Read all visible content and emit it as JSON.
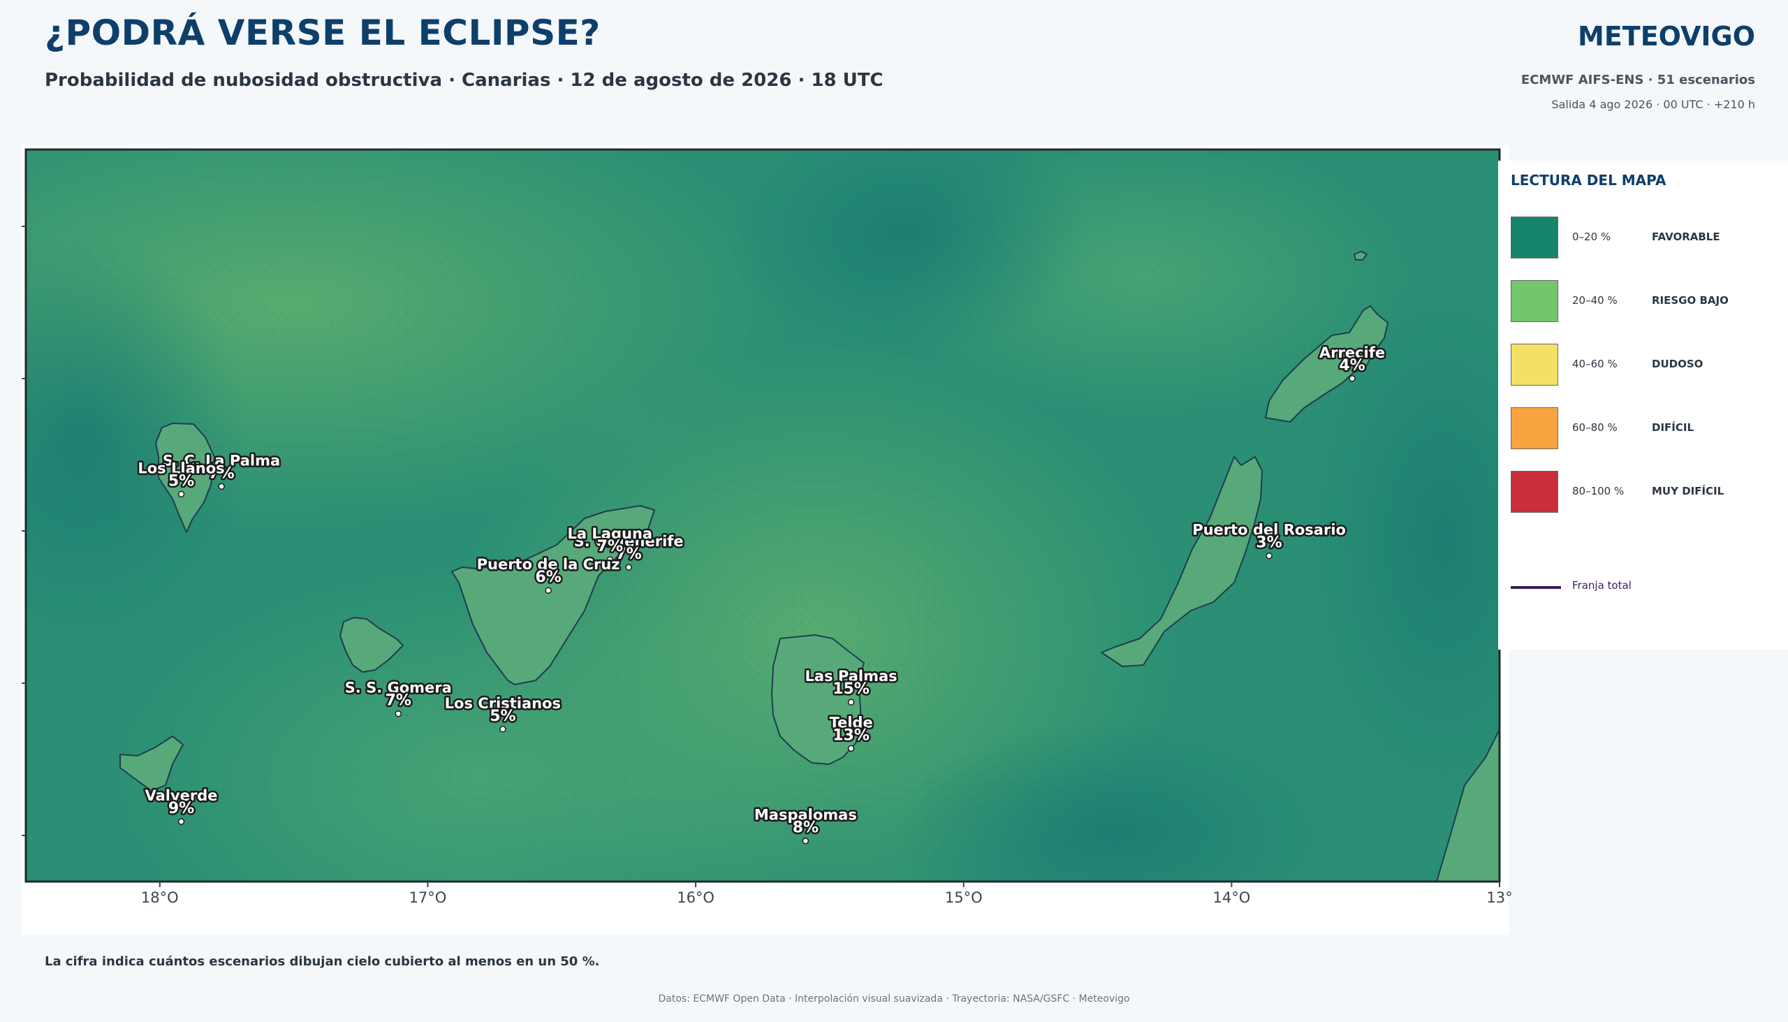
{
  "header": {
    "title": "¿PODRÁ VERSE EL ECLIPSE?",
    "subtitle": "Probabilidad de nubosidad obstructiva · Canarias · 12 de agosto de 2026 · 18 UTC",
    "brand": "METEOVIGO",
    "model": "ECMWF AIFS-ENS · 51 escenarios",
    "run": "Salida 4 ago 2026 · 00 UTC · +210 h"
  },
  "map": {
    "lon_range": [
      -18.5,
      -13.0
    ],
    "lat_range": [
      27.6,
      29.5
    ],
    "x_ticks": [
      {
        "lon": -18,
        "label": "18°O"
      },
      {
        "lon": -17,
        "label": "17°O"
      },
      {
        "lon": -16,
        "label": "16°O"
      },
      {
        "lon": -15,
        "label": "15°O"
      },
      {
        "lon": -14,
        "label": "14°O"
      },
      {
        "lon": -13,
        "label": "13°"
      }
    ],
    "cities": [
      {
        "name": "S. C. La Palma",
        "value": "7%",
        "lon": -17.77,
        "lat": 28.68
      },
      {
        "name": "Los Llanos",
        "value": "5%",
        "lon": -17.92,
        "lat": 28.66
      },
      {
        "name": "S. C. Tenerife",
        "value": "7%",
        "lon": -16.25,
        "lat": 28.47
      },
      {
        "name": "La Laguna",
        "value": "7%",
        "lon": -16.32,
        "lat": 28.49
      },
      {
        "name": "Puerto de la Cruz",
        "value": "6%",
        "lon": -16.55,
        "lat": 28.41
      },
      {
        "name": "Los Cristianos",
        "value": "5%",
        "lon": -16.72,
        "lat": 28.05
      },
      {
        "name": "S. S. Gomera",
        "value": "7%",
        "lon": -17.11,
        "lat": 28.09
      },
      {
        "name": "Valverde",
        "value": "9%",
        "lon": -17.92,
        "lat": 27.81
      },
      {
        "name": "Las Palmas",
        "value": "15%",
        "lon": -15.42,
        "lat": 28.12
      },
      {
        "name": "Telde",
        "value": "13%",
        "lon": -15.42,
        "lat": 28.0
      },
      {
        "name": "Maspalomas",
        "value": "8%",
        "lon": -15.59,
        "lat": 27.76
      },
      {
        "name": "Puerto del Rosario",
        "value": "3%",
        "lon": -13.86,
        "lat": 28.5
      },
      {
        "name": "Arrecife",
        "value": "4%",
        "lon": -13.55,
        "lat": 28.96
      }
    ]
  },
  "legend": {
    "title": "LECTURA DEL MAPA",
    "items": [
      {
        "range": "0–20 %",
        "label": "FAVORABLE",
        "color": "#17856b"
      },
      {
        "range": "20–40 %",
        "label": "RIESGO BAJO",
        "color": "#74c66c"
      },
      {
        "range": "40–60 %",
        "label": "DUDOSO",
        "color": "#f5e066"
      },
      {
        "range": "60–80 %",
        "label": "DIFÍCIL",
        "color": "#f7a440"
      },
      {
        "range": "80–100 %",
        "label": "MUY DIFÍCIL",
        "color": "#c9303b"
      }
    ],
    "track_label": "Franja total",
    "track_color": "#3b1f5e"
  },
  "footer": {
    "note": "La cifra indica cuántos escenarios dibujan cielo cubierto al menos en un 50 %.",
    "credits": "Datos: ECMWF Open Data · Interpolación visual suavizada · Trayectoria: NASA/GSFC · Meteovigo"
  }
}
